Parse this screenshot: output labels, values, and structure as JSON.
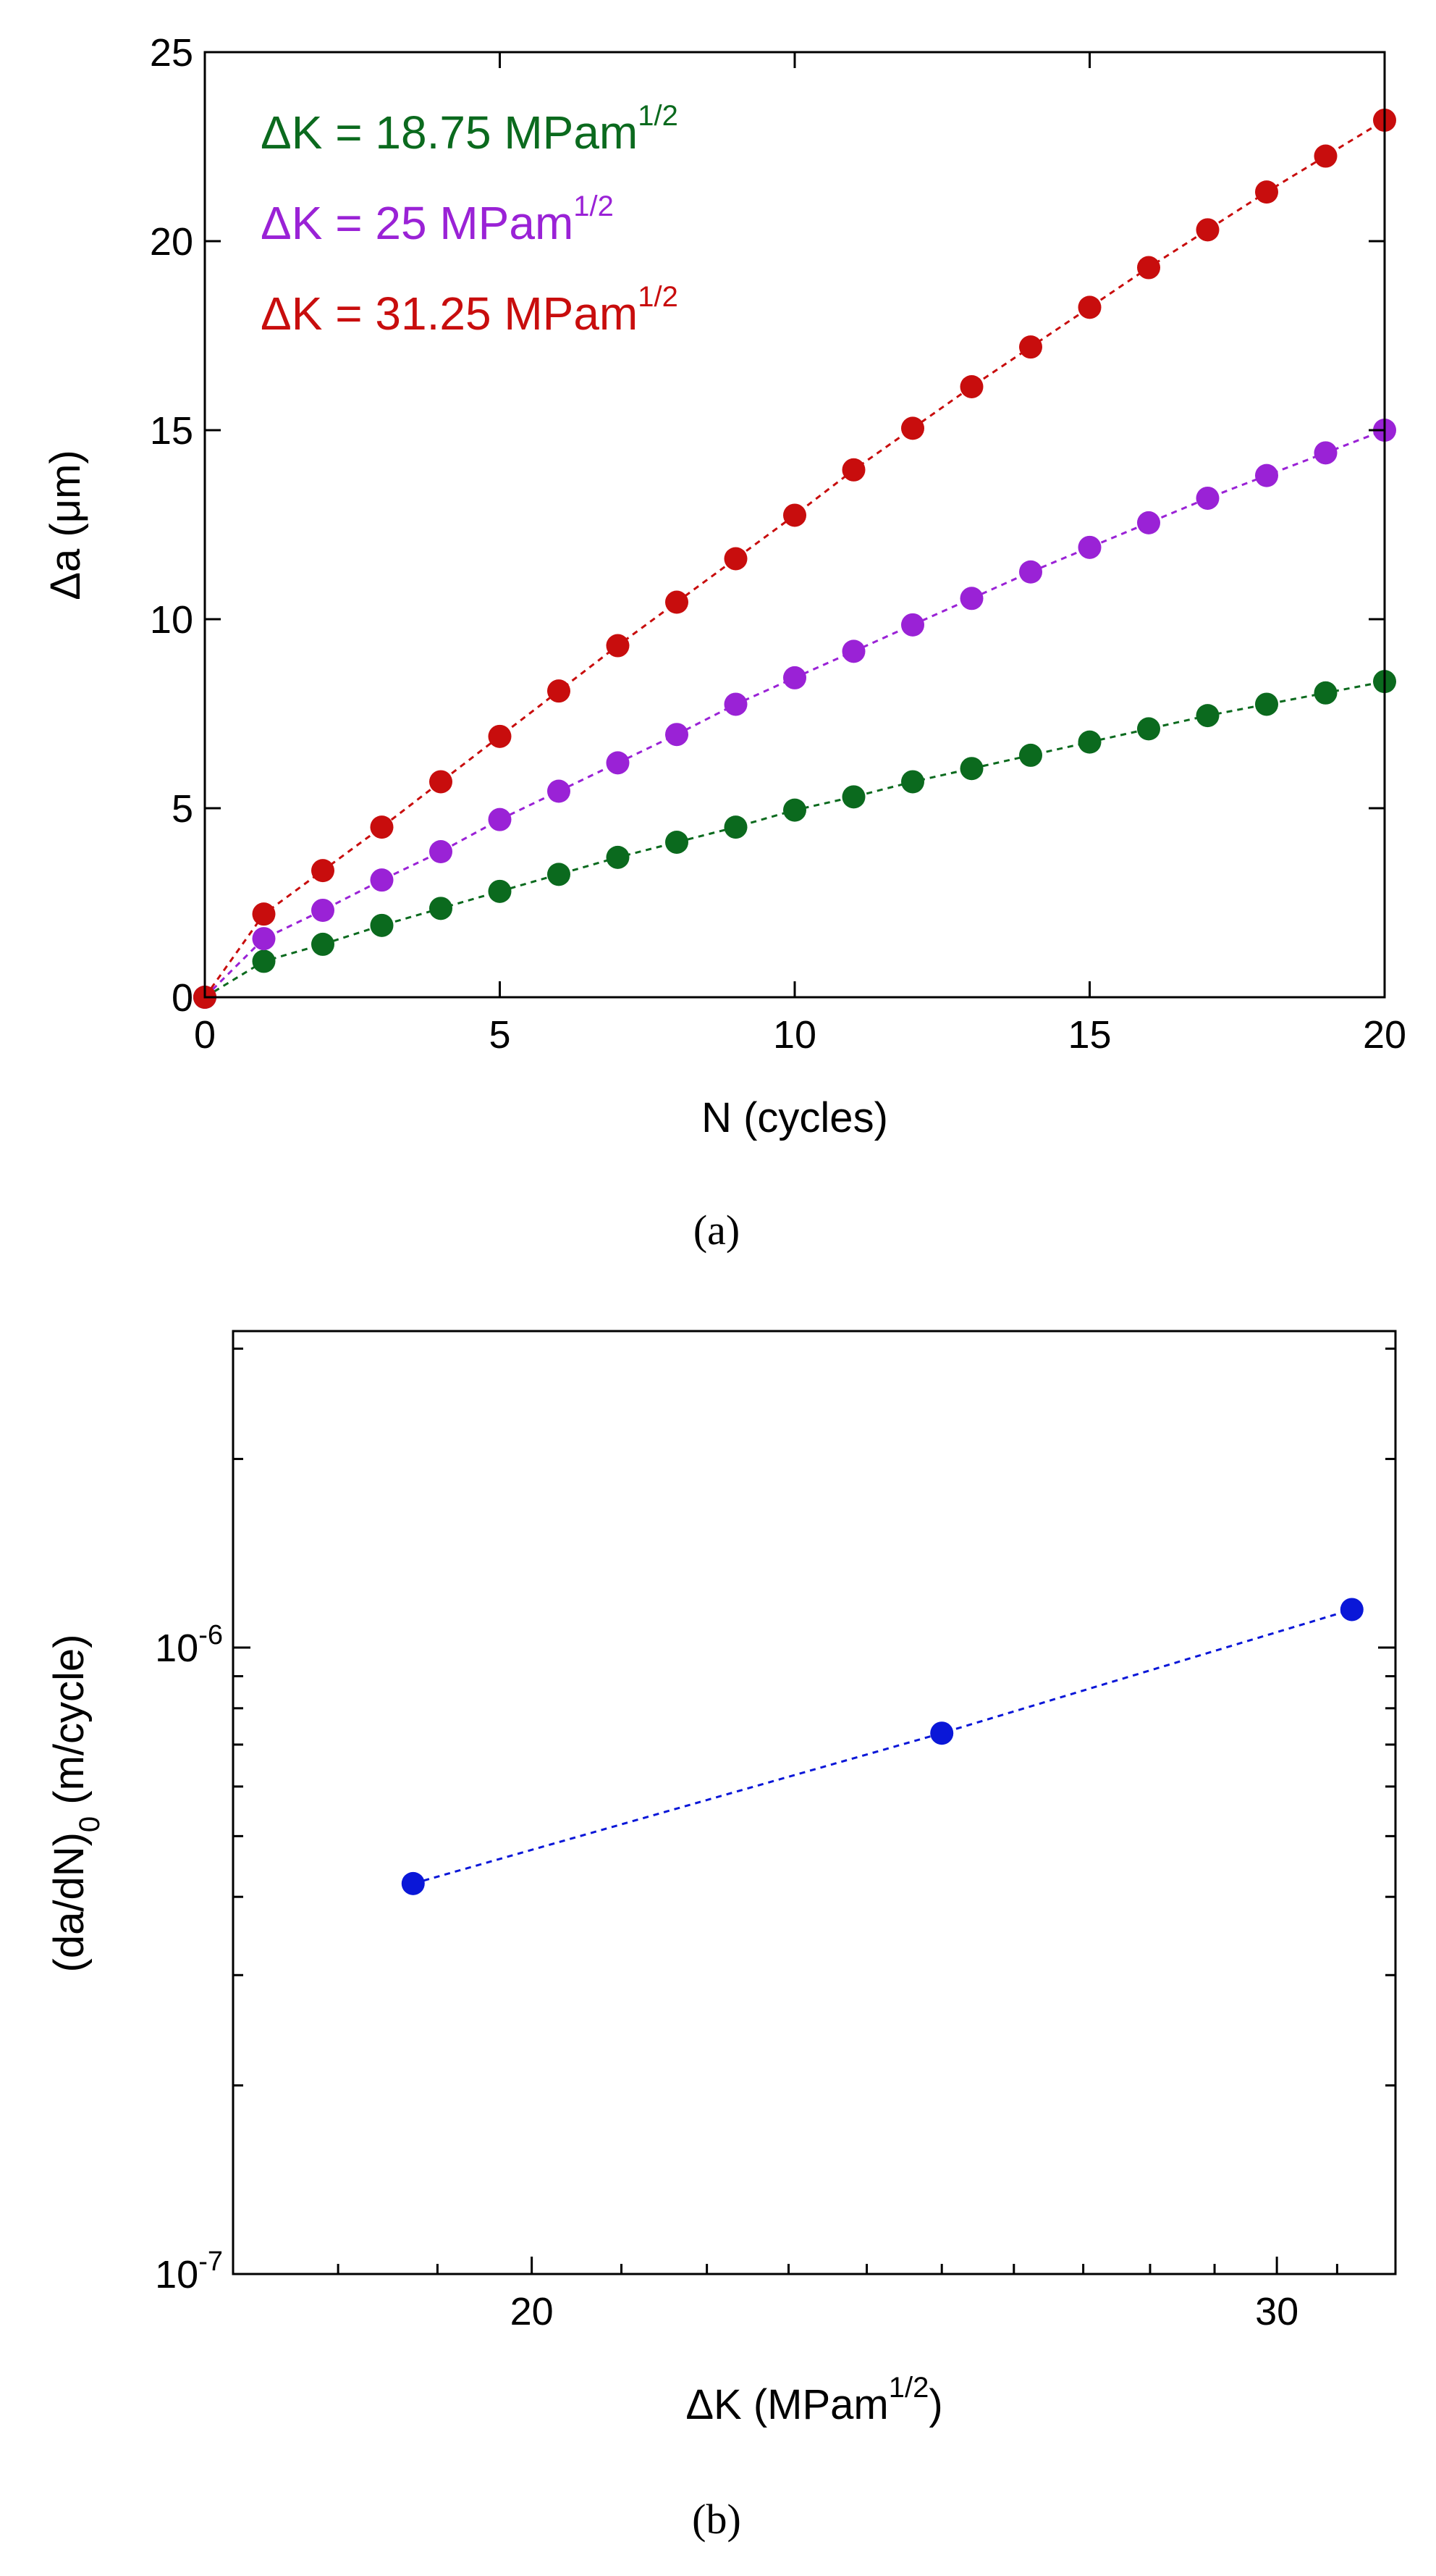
{
  "chart_data": [
    {
      "id": "a",
      "type": "scatter",
      "caption": "(a)",
      "xlabel": "N (cycles)",
      "ylabel": "Δa (μm)",
      "xlim": [
        0,
        20
      ],
      "ylim": [
        0,
        25
      ],
      "xticks": [
        0,
        5,
        10,
        15,
        20
      ],
      "yticks": [
        0,
        5,
        10,
        15,
        20,
        25
      ],
      "xtick_labels": [
        "0",
        "5",
        "10",
        "15",
        "20"
      ],
      "ytick_labels": [
        "0",
        "5",
        "10",
        "15",
        "20",
        "25"
      ],
      "legend_position": "top-left",
      "series": [
        {
          "name": "ΔK = 18.75 MPam1/2",
          "legend_main": "ΔK = 18.75 MPam",
          "legend_sup": "1/2",
          "color": "#0b6a1e",
          "x": [
            0,
            1,
            2,
            3,
            4,
            5,
            6,
            7,
            8,
            9,
            10,
            11,
            12,
            13,
            14,
            15,
            16,
            17,
            18,
            19,
            20
          ],
          "y": [
            0,
            0.95,
            1.4,
            1.9,
            2.35,
            2.8,
            3.25,
            3.7,
            4.1,
            4.5,
            4.95,
            5.3,
            5.7,
            6.05,
            6.4,
            6.75,
            7.1,
            7.45,
            7.75,
            8.05,
            8.35
          ]
        },
        {
          "name": "ΔK = 25 MPam1/2",
          "legend_main": "ΔK = 25 MPam",
          "legend_sup": "1/2",
          "color": "#9a22d6",
          "x": [
            0,
            1,
            2,
            3,
            4,
            5,
            6,
            7,
            8,
            9,
            10,
            11,
            12,
            13,
            14,
            15,
            16,
            17,
            18,
            19,
            20
          ],
          "y": [
            0,
            1.55,
            2.3,
            3.1,
            3.85,
            4.7,
            5.45,
            6.2,
            6.95,
            7.75,
            8.45,
            9.15,
            9.85,
            10.55,
            11.25,
            11.9,
            12.55,
            13.2,
            13.8,
            14.4,
            15.0
          ]
        },
        {
          "name": "ΔK = 31.25 MPam1/2",
          "legend_main": "ΔK = 31.25 MPam",
          "legend_sup": "1/2",
          "color": "#c80d0d",
          "x": [
            0,
            1,
            2,
            3,
            4,
            5,
            6,
            7,
            8,
            9,
            10,
            11,
            12,
            13,
            14,
            15,
            16,
            17,
            18,
            19,
            20
          ],
          "y": [
            0,
            2.2,
            3.35,
            4.5,
            5.7,
            6.9,
            8.1,
            9.3,
            10.45,
            11.6,
            12.75,
            13.95,
            15.05,
            16.15,
            17.2,
            18.25,
            19.3,
            20.3,
            21.3,
            22.25,
            23.2
          ]
        }
      ]
    },
    {
      "id": "b",
      "type": "scatter",
      "caption": "(b)",
      "xscale": "log",
      "yscale": "log",
      "xlabel": "ΔK (MPam1/2)",
      "xlabel_main": "ΔK (MPam",
      "xlabel_sup": "1/2",
      "xlabel_end": ")",
      "ylabel": "(da/dN)0 (m/cycle)",
      "ylabel_main": "(da/dN)",
      "ylabel_sub": "0",
      "ylabel_end": " (m/cycle)",
      "xlim": [
        17,
        32
      ],
      "ylim": [
        1e-07,
        3.2e-06
      ],
      "xticks_labeled": [
        20,
        30
      ],
      "xtick_labels": [
        "20",
        "30"
      ],
      "ytick_labels": [
        {
          "value": 1e-06,
          "base": "10",
          "exp": "-6"
        },
        {
          "value": 1e-07,
          "base": "10",
          "exp": "-7"
        }
      ],
      "series": [
        {
          "name": "(da/dN)0",
          "color": "#0a17d8",
          "x": [
            18.75,
            25,
            31.25
          ],
          "y": [
            4.2e-07,
            7.3e-07,
            1.15e-06
          ]
        }
      ]
    }
  ]
}
